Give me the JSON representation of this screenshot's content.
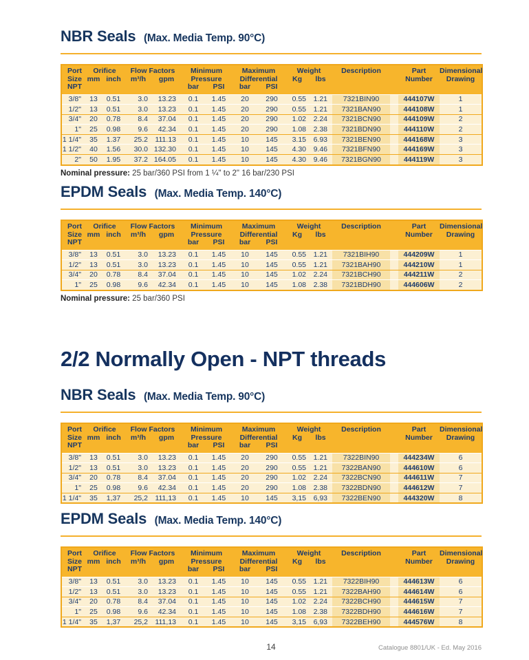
{
  "colors": {
    "accent_gold": "#f7b52c",
    "border_gold": "#f0a81c",
    "row_cream": "#fcf0d3",
    "highlight_tan": "#f8e1a7",
    "brand_navy": "#16355e"
  },
  "page": {
    "heading": "2/2 Normally Open - NPT threads",
    "footer": {
      "page_number": "14",
      "edition": "Catalogue 8801/UK - Ed. May 2016"
    }
  },
  "table_header": {
    "port": "Port\nSize\nNPT",
    "orifice": "Orifice",
    "flow": "Flow Factors",
    "min": "Minimum\nPressure",
    "max": "Maximum\nDifferential",
    "weight": "Weight",
    "description": "Description",
    "part": "Part\nNumber",
    "drawing": "Dimensional\nDrawing",
    "units": {
      "mm": "mm",
      "inch": "inch",
      "m3h": "m³/h",
      "gpm": "gpm",
      "bar": "bar",
      "psi": "PSI",
      "kg": "Kg",
      "lbs": "lbs"
    }
  },
  "sections": [
    {
      "title": "NBR Seals",
      "subtitle": "(Max. Media Temp. 90°C)",
      "note_label": "Nominal pressure:",
      "note_text": " 25 bar/360 PSI from 1 ¼\" to 2\" 16 bar/230 PSI",
      "rows": [
        [
          "3/8\"",
          "13",
          "0.51",
          "3.0",
          "13.23",
          "0.1",
          "1.45",
          "20",
          "290",
          "0.55",
          "1.21",
          "7321BIN90",
          "444107W",
          "1"
        ],
        [
          "1/2\"",
          "13",
          "0.51",
          "3.0",
          "13.23",
          "0.1",
          "1.45",
          "20",
          "290",
          "0.55",
          "1.21",
          "7321BAN90",
          "444108W",
          "1"
        ],
        [
          "3/4\"",
          "20",
          "0.78",
          "8.4",
          "37.04",
          "0.1",
          "1.45",
          "20",
          "290",
          "1.02",
          "2.24",
          "7321BCN90",
          "444109W",
          "2"
        ],
        [
          "1\"",
          "25",
          "0.98",
          "9.6",
          "42.34",
          "0.1",
          "1.45",
          "20",
          "290",
          "1.08",
          "2.38",
          "7321BDN90",
          "444110W",
          "2"
        ],
        [
          "1 1/4\"",
          "35",
          "1.37",
          "25.2",
          "111.13",
          "0.1",
          "1.45",
          "10",
          "145",
          "3.15",
          "6.93",
          "7321BEN90",
          "444168W",
          "3"
        ],
        [
          "1 1/2\"",
          "40",
          "1.56",
          "30.0",
          "132.30",
          "0.1",
          "1.45",
          "10",
          "145",
          "4.30",
          "9.46",
          "7321BFN90",
          "444169W",
          "3"
        ],
        [
          "2\"",
          "50",
          "1.95",
          "37.2",
          "164.05",
          "0.1",
          "1.45",
          "10",
          "145",
          "4.30",
          "9.46",
          "7321BGN90",
          "444119W",
          "3"
        ]
      ]
    },
    {
      "title": "EPDM Seals",
      "subtitle": "(Max. Media Temp. 140°C)",
      "note_label": "Nominal pressure:",
      "note_text": " 25 bar/360 PSI",
      "rows": [
        [
          "3/8\"",
          "13",
          "0.51",
          "3.0",
          "13.23",
          "0.1",
          "1.45",
          "10",
          "145",
          "0.55",
          "1.21",
          "7321BIH90",
          "444209W",
          "1"
        ],
        [
          "1/2\"",
          "13",
          "0.51",
          "3.0",
          "13.23",
          "0.1",
          "1.45",
          "10",
          "145",
          "0.55",
          "1.21",
          "7321BAH90",
          "444210W",
          "1"
        ],
        [
          "3/4\"",
          "20",
          "0.78",
          "8.4",
          "37.04",
          "0.1",
          "1.45",
          "10",
          "145",
          "1.02",
          "2.24",
          "7321BCH90",
          "444211W",
          "2"
        ],
        [
          "1\"",
          "25",
          "0.98",
          "9.6",
          "42.34",
          "0.1",
          "1.45",
          "10",
          "145",
          "1.08",
          "2.38",
          "7321BDH90",
          "444606W",
          "2"
        ]
      ]
    },
    {
      "title": "NBR Seals",
      "subtitle": "(Max. Media Temp. 90°C)",
      "rows": [
        [
          "3/8\"",
          "13",
          "0.51",
          "3.0",
          "13.23",
          "0.1",
          "1.45",
          "20",
          "290",
          "0.55",
          "1.21",
          "7322BIN90",
          "444234W",
          "6"
        ],
        [
          "1/2\"",
          "13",
          "0.51",
          "3.0",
          "13.23",
          "0.1",
          "1.45",
          "20",
          "290",
          "0.55",
          "1.21",
          "7322BAN90",
          "444610W",
          "6"
        ],
        [
          "3/4\"",
          "20",
          "0.78",
          "8.4",
          "37.04",
          "0.1",
          "1.45",
          "20",
          "290",
          "1.02",
          "2.24",
          "7322BCN90",
          "444611W",
          "7"
        ],
        [
          "1\"",
          "25",
          "0.98",
          "9.6",
          "42.34",
          "0.1",
          "1.45",
          "20",
          "290",
          "1.08",
          "2.38",
          "7322BDN90",
          "444612W",
          "7"
        ],
        [
          "1 1/4\"",
          "35",
          "1,37",
          "25,2",
          "111,13",
          "0.1",
          "1.45",
          "10",
          "145",
          "3,15",
          "6,93",
          "7322BEN90",
          "444320W",
          "8"
        ]
      ]
    },
    {
      "title": "EPDM Seals",
      "subtitle": "(Max. Media Temp. 140°C)",
      "rows": [
        [
          "3/8\"",
          "13",
          "0.51",
          "3.0",
          "13.23",
          "0.1",
          "1.45",
          "10",
          "145",
          "0.55",
          "1.21",
          "7322BIH90",
          "444613W",
          "6"
        ],
        [
          "1/2\"",
          "13",
          "0.51",
          "3.0",
          "13.23",
          "0.1",
          "1.45",
          "10",
          "145",
          "0.55",
          "1.21",
          "7322BAH90",
          "444614W",
          "6"
        ],
        [
          "3/4\"",
          "20",
          "0.78",
          "8.4",
          "37.04",
          "0.1",
          "1.45",
          "10",
          "145",
          "1.02",
          "2.24",
          "7322BCH90",
          "444615W",
          "7"
        ],
        [
          "1\"",
          "25",
          "0.98",
          "9.6",
          "42.34",
          "0.1",
          "1.45",
          "10",
          "145",
          "1.08",
          "2.38",
          "7322BDH90",
          "444616W",
          "7"
        ],
        [
          "1 1/4\"",
          "35",
          "1,37",
          "25,2",
          "111,13",
          "0.1",
          "1.45",
          "10",
          "145",
          "3,15",
          "6,93",
          "7322BEH90",
          "444576W",
          "8"
        ]
      ]
    }
  ]
}
